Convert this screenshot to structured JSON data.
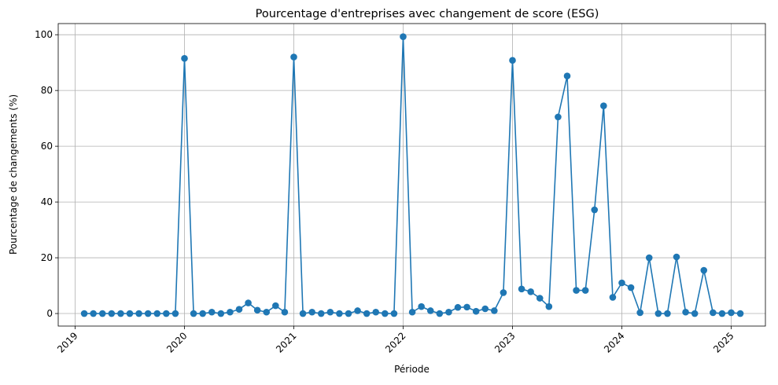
{
  "chart_data": {
    "type": "line",
    "title": "Pourcentage d'entreprises avec changement de score (ESG)",
    "xlabel": "Période",
    "ylabel": "Pourcentage de changements (%)",
    "ylim": [
      -4.5,
      104
    ],
    "y_ticks": [
      0,
      20,
      40,
      60,
      80,
      100
    ],
    "x_ticks": [
      "2019",
      "2020",
      "2021",
      "2022",
      "2023",
      "2024",
      "2025"
    ],
    "grid": true,
    "color": "#1f77b4",
    "x": [
      "2019-01",
      "2019-02",
      "2019-03",
      "2019-04",
      "2019-05",
      "2019-06",
      "2019-07",
      "2019-08",
      "2019-09",
      "2019-10",
      "2019-11",
      "2019-12",
      "2020-01",
      "2020-02",
      "2020-03",
      "2020-04",
      "2020-05",
      "2020-06",
      "2020-07",
      "2020-08",
      "2020-09",
      "2020-10",
      "2020-11",
      "2020-12",
      "2021-01",
      "2021-02",
      "2021-03",
      "2021-04",
      "2021-05",
      "2021-06",
      "2021-07",
      "2021-08",
      "2021-09",
      "2021-10",
      "2021-11",
      "2021-12",
      "2022-01",
      "2022-02",
      "2022-03",
      "2022-04",
      "2022-05",
      "2022-06",
      "2022-07",
      "2022-08",
      "2022-09",
      "2022-10",
      "2022-11",
      "2022-12",
      "2023-01",
      "2023-02",
      "2023-03",
      "2023-04",
      "2023-05",
      "2023-06",
      "2023-07",
      "2023-08",
      "2023-09",
      "2023-10",
      "2023-11",
      "2023-12",
      "2024-01",
      "2024-02",
      "2024-03",
      "2024-04",
      "2024-05",
      "2024-06",
      "2024-07",
      "2024-08",
      "2024-09",
      "2024-10",
      "2024-11",
      "2024-12",
      "2025-01"
    ],
    "values": [
      0,
      0,
      0,
      0,
      0,
      0,
      0,
      0,
      0,
      0,
      0,
      91.5,
      0,
      0,
      0.5,
      0,
      0.5,
      1.5,
      3.8,
      1.2,
      0.5,
      2.8,
      0.5,
      92,
      0,
      0.5,
      0,
      0.5,
      0,
      0,
      1,
      0,
      0.5,
      0,
      0,
      99.3,
      0.5,
      2.5,
      1,
      0,
      0.5,
      2.2,
      2.3,
      0.8,
      1.7,
      1,
      7.5,
      90.8,
      8.8,
      7.8,
      5.5,
      2.5,
      70.5,
      85.2,
      8.3,
      8.3,
      37.2,
      74.5,
      5.8,
      11,
      9.3,
      0.3,
      20,
      0,
      0,
      20.3,
      0.5,
      0,
      15.5,
      0.3,
      0,
      0.3,
      0
    ]
  }
}
